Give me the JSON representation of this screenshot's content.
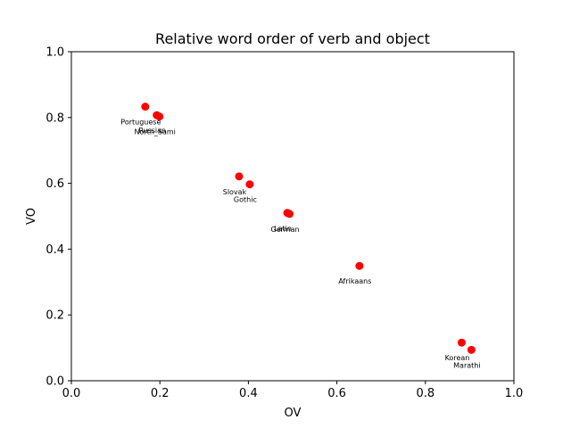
{
  "chart_data": {
    "type": "scatter",
    "title": "Relative word order of verb and object",
    "xlabel": "OV",
    "ylabel": "VO",
    "xlim": [
      0.0,
      1.0
    ],
    "ylim": [
      0.0,
      1.0
    ],
    "xticks": [
      "0.0",
      "0.2",
      "0.4",
      "0.6",
      "0.8",
      "1.0"
    ],
    "yticks": [
      "0.0",
      "0.2",
      "0.4",
      "0.6",
      "0.8",
      "1.0"
    ],
    "grid": false,
    "point_color": "#ff0000",
    "points": [
      {
        "label": "Portuguese",
        "x": 0.167,
        "y": 0.833
      },
      {
        "label": "Russian",
        "x": 0.193,
        "y": 0.807
      },
      {
        "label": "North_Sami",
        "x": 0.199,
        "y": 0.803
      },
      {
        "label": "Slovak",
        "x": 0.379,
        "y": 0.621
      },
      {
        "label": "Gothic",
        "x": 0.403,
        "y": 0.597
      },
      {
        "label": "Latin",
        "x": 0.488,
        "y": 0.51
      },
      {
        "label": "German",
        "x": 0.493,
        "y": 0.507
      },
      {
        "label": "Afrikaans",
        "x": 0.651,
        "y": 0.349
      },
      {
        "label": "Korean",
        "x": 0.882,
        "y": 0.116
      },
      {
        "label": "Marathi",
        "x": 0.904,
        "y": 0.094
      }
    ]
  }
}
